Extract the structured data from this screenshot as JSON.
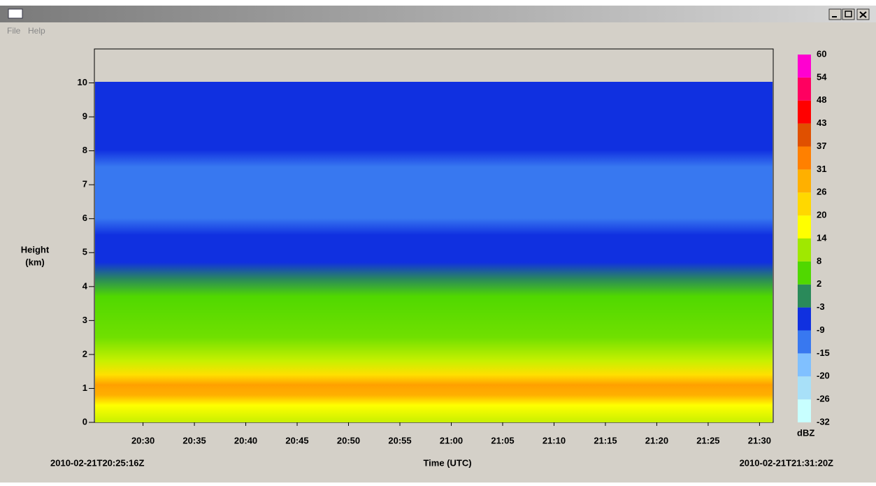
{
  "window": {
    "menu": [
      "File",
      "Help"
    ]
  },
  "chart_data": {
    "type": "heatmap",
    "y_label": "Height",
    "y_label_unit": "(km)",
    "x_label": "Time (UTC)",
    "start_label": "2010-02-21T20:25:16Z",
    "end_label": "2010-02-21T21:31:20Z",
    "xlim": [
      73516,
      77480
    ],
    "xticks": [
      {
        "value": 73800,
        "label": "20:30"
      },
      {
        "value": 74100,
        "label": "20:35"
      },
      {
        "value": 74400,
        "label": "20:40"
      },
      {
        "value": 74700,
        "label": "20:45"
      },
      {
        "value": 75000,
        "label": "20:50"
      },
      {
        "value": 75300,
        "label": "20:55"
      },
      {
        "value": 75600,
        "label": "21:00"
      },
      {
        "value": 75900,
        "label": "21:05"
      },
      {
        "value": 76200,
        "label": "21:10"
      },
      {
        "value": 76500,
        "label": "21:15"
      },
      {
        "value": 76800,
        "label": "21:20"
      },
      {
        "value": 77100,
        "label": "21:25"
      },
      {
        "value": 77400,
        "label": "21:30"
      }
    ],
    "ylim": [
      0,
      11
    ],
    "yticks": [
      0,
      1,
      2,
      3,
      4,
      5,
      6,
      7,
      8,
      9,
      10
    ],
    "colorbar": {
      "label": "dBZ",
      "levels": [
        -32,
        -26,
        -20,
        -15,
        -9,
        -3,
        2,
        8,
        14,
        20,
        26,
        31,
        37,
        43,
        48,
        54,
        60
      ],
      "colors": [
        "#c8ffff",
        "#a8e0f8",
        "#80c0ff",
        "#3878f0",
        "#1030e0",
        "#2a8a5a",
        "#50d800",
        "#a0e800",
        "#ffff00",
        "#ffd800",
        "#ffb000",
        "#ff8000",
        "#e05000",
        "#ff0000",
        "#ff0060",
        "#ff00d0"
      ]
    }
  }
}
